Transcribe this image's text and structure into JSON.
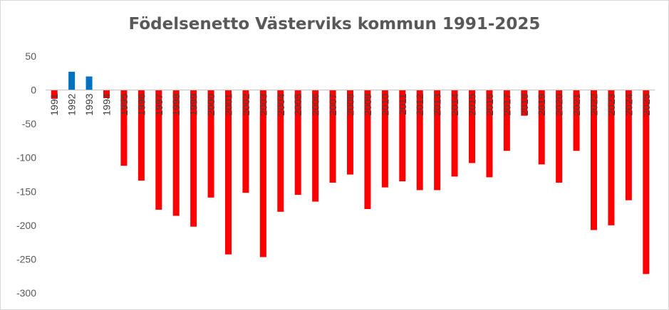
{
  "chart_data": {
    "type": "bar",
    "title": "Födelsenetto Västerviks kommun 1991-2025",
    "xlabel": "",
    "ylabel": "",
    "ylim": [
      -300,
      50
    ],
    "yticks": [
      50,
      0,
      -50,
      -100,
      -150,
      -200,
      -250,
      -300
    ],
    "grid": false,
    "legend": "none",
    "colors": {
      "positive": "#0070C0",
      "negative": "#FF0000",
      "axis": "#bfbfbf",
      "text": "#595959"
    },
    "categories": [
      "1991",
      "1992",
      "1993",
      "1994",
      "1995",
      "1996",
      "1997",
      "1998",
      "1999",
      "2000",
      "2001",
      "2002",
      "2003",
      "2004",
      "2005",
      "2006",
      "2007",
      "2008",
      "2009",
      "2010",
      "2011",
      "2012",
      "2013",
      "2014",
      "2015",
      "2016",
      "2017",
      "2018",
      "2019",
      "2020",
      "2021",
      "2022",
      "2023",
      "2024",
      "2025"
    ],
    "values": [
      -13,
      27,
      20,
      -12,
      -112,
      -134,
      -177,
      -186,
      -202,
      -159,
      -243,
      -152,
      -247,
      -180,
      -155,
      -165,
      -137,
      -125,
      -176,
      -144,
      -135,
      -148,
      -148,
      -128,
      -108,
      -129,
      -90,
      -38,
      -110,
      -137,
      -90,
      -207,
      -200,
      -163,
      -272
    ]
  }
}
